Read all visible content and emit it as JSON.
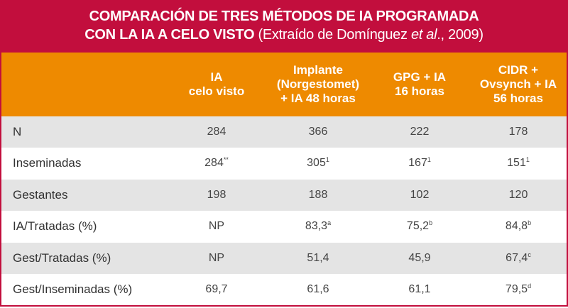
{
  "title": {
    "line1": "COMPARACIÓN DE TRES MÉTODOS DE IA PROGRAMADA",
    "line2": "CON LA IA A CELO VISTO",
    "source_prefix": "(Extraído de Domínguez ",
    "source_italic": "et al",
    "source_suffix": "., 2009)"
  },
  "columns": [
    "IA\ncelo visto",
    "Implante\n(Norgestomet)\n+ IA 48 horas",
    "GPG + IA\n16 horas",
    "CIDR +\nOvsynch + IA\n56 horas"
  ],
  "rows": [
    {
      "label": "N",
      "cells": [
        {
          "v": "284"
        },
        {
          "v": "366"
        },
        {
          "v": "222"
        },
        {
          "v": "178"
        }
      ]
    },
    {
      "label": "Inseminadas",
      "cells": [
        {
          "v": "284",
          "s": "**"
        },
        {
          "v": "305",
          "s": "1"
        },
        {
          "v": "167",
          "s": "1"
        },
        {
          "v": "151",
          "s": "1"
        }
      ]
    },
    {
      "label": "Gestantes",
      "cells": [
        {
          "v": "198"
        },
        {
          "v": "188"
        },
        {
          "v": "102"
        },
        {
          "v": "120"
        }
      ]
    },
    {
      "label": "IA/Tratadas (%)",
      "cells": [
        {
          "v": "NP"
        },
        {
          "v": "83,3",
          "s": "a"
        },
        {
          "v": "75,2",
          "s": "b"
        },
        {
          "v": "84,8",
          "s": "b"
        }
      ]
    },
    {
      "label": "Gest/Tratadas (%)",
      "cells": [
        {
          "v": "NP"
        },
        {
          "v": "51,4"
        },
        {
          "v": "45,9"
        },
        {
          "v": "67,4",
          "s": "c"
        }
      ]
    },
    {
      "label": "Gest/Inseminadas (%)",
      "cells": [
        {
          "v": "69,7"
        },
        {
          "v": "61,6"
        },
        {
          "v": "61,1"
        },
        {
          "v": "79,5",
          "s": "d"
        }
      ]
    }
  ],
  "colors": {
    "title_bg": "#c20e3d",
    "header_bg": "#ee8a00",
    "alt_row": "#e4e4e4"
  }
}
